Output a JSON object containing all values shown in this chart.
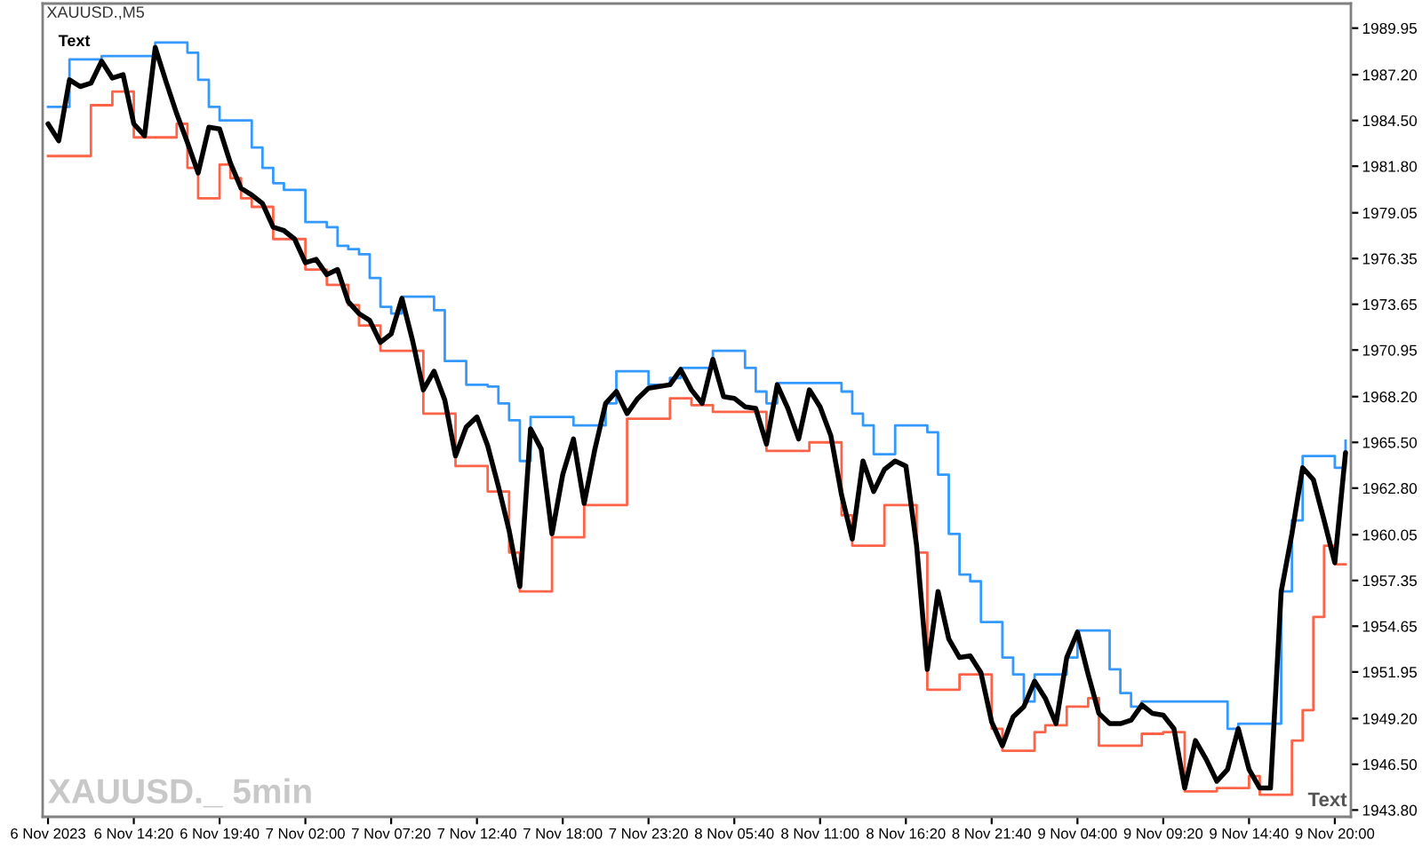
{
  "chart_data": {
    "type": "line",
    "title": "XAUUSD.,M5",
    "annotations": [
      "Text",
      "XAUUSD._ 5min",
      "Text"
    ],
    "categories": [
      "6 Nov 2023",
      null,
      null,
      null,
      null,
      null,
      null,
      null,
      "6 Nov 14:20",
      null,
      null,
      null,
      null,
      null,
      null,
      null,
      "6 Nov 19:40",
      null,
      null,
      null,
      null,
      null,
      null,
      null,
      "7 Nov 02:00",
      null,
      null,
      null,
      null,
      null,
      null,
      null,
      "7 Nov 07:20",
      null,
      null,
      null,
      null,
      null,
      null,
      null,
      "7 Nov 12:40",
      null,
      null,
      null,
      null,
      null,
      null,
      null,
      "7 Nov 18:00",
      null,
      null,
      null,
      null,
      null,
      null,
      null,
      "7 Nov 23:20",
      null,
      null,
      null,
      null,
      null,
      null,
      null,
      "8 Nov 05:40",
      null,
      null,
      null,
      null,
      null,
      null,
      null,
      "8 Nov 11:00",
      null,
      null,
      null,
      null,
      null,
      null,
      null,
      "8 Nov 16:20",
      null,
      null,
      null,
      null,
      null,
      null,
      null,
      "8 Nov 21:40",
      null,
      null,
      null,
      null,
      null,
      null,
      null,
      "9 Nov 04:00",
      null,
      null,
      null,
      null,
      null,
      null,
      null,
      "9 Nov 09:20",
      null,
      null,
      null,
      null,
      null,
      null,
      null,
      "9 Nov 14:40",
      null,
      null,
      null,
      null,
      null,
      null,
      null,
      "9 Nov 20:00",
      null
    ],
    "ylim": [
      1943.4,
      1991.4
    ],
    "yticks": [
      1989.95,
      {
        "value": 1987.2,
        "label": "1987.20"
      },
      {
        "value": 1984.5,
        "label": "1984.50"
      },
      {
        "value": 1981.8,
        "label": "1981.80"
      },
      1979.05,
      1976.35,
      1973.65,
      1970.95,
      {
        "value": 1968.2,
        "label": "1968.20"
      },
      {
        "value": 1965.5,
        "label": "1965.50"
      },
      {
        "value": 1962.8,
        "label": "1962.80"
      },
      1960.05,
      1957.35,
      1954.65,
      1951.95,
      {
        "value": 1949.2,
        "label": "1949.20"
      },
      {
        "value": 1946.5,
        "label": "1946.50"
      },
      {
        "value": 1943.8,
        "label": "1943.80"
      }
    ],
    "series": [
      {
        "type": "step",
        "color": "#3399ff",
        "values": [
          1985.3,
          1985.3,
          1988.1,
          1988.1,
          1988.1,
          1988.3,
          1988.3,
          1988.3,
          1988.3,
          1988.3,
          1989.1,
          1989.1,
          1989.1,
          1988.5,
          1986.9,
          1985.3,
          1984.5,
          1984.5,
          1984.5,
          1982.9,
          1981.7,
          1980.8,
          1980.4,
          1980.4,
          1978.5,
          1978.5,
          1978.2,
          1977.1,
          1976.9,
          1976.6,
          1975.2,
          1973.5,
          1973.1,
          1974.1,
          1974.1,
          1974.1,
          1973.3,
          1970.3,
          1970.3,
          1968.9,
          1968.9,
          1968.8,
          1967.8,
          1966.8,
          1964.4,
          1967.0,
          1967.0,
          1967.0,
          1967.0,
          1966.5,
          1966.5,
          1966.5,
          1967.8,
          1969.7,
          1969.7,
          1969.7,
          1968.9,
          1968.9,
          1969.3,
          1969.9,
          1969.9,
          1969.9,
          1970.9,
          1970.9,
          1970.9,
          1969.9,
          1968.5,
          1967.8,
          1969.0,
          1969.0,
          1969.0,
          1969.0,
          1969.0,
          1969.0,
          1968.5,
          1967.2,
          1966.5,
          1964.8,
          1964.8,
          1966.5,
          1966.5,
          1966.5,
          1966.1,
          1963.6,
          1960.1,
          1957.7,
          1957.3,
          1954.9,
          1954.9,
          1952.8,
          1951.8,
          1950.2,
          1951.8,
          1951.8,
          1951.8,
          1952.8,
          1954.4,
          1954.4,
          1954.4,
          1952.1,
          1950.7,
          1949.9,
          1950.2,
          1950.2,
          1950.2,
          1950.2,
          1950.2,
          1950.2,
          1950.2,
          1950.2,
          1948.6,
          1948.9,
          1948.9,
          1948.9,
          1948.9,
          1956.7,
          1960.9,
          1964.7,
          1964.7,
          1964.7,
          1964.0,
          1965.6
        ]
      },
      {
        "type": "step",
        "color": "#ff6347",
        "values": [
          1982.4,
          1982.4,
          1982.4,
          1982.4,
          1985.4,
          1985.4,
          1986.2,
          1986.2,
          1983.5,
          1983.5,
          1983.5,
          1983.5,
          1984.3,
          1981.7,
          1979.9,
          1979.9,
          1981.9,
          1981.1,
          1979.9,
          1979.4,
          1979.4,
          1977.5,
          1977.5,
          1977.5,
          1975.7,
          1975.7,
          1974.8,
          1974.8,
          1973.6,
          1972.4,
          1972.4,
          1970.9,
          1970.9,
          1970.9,
          1970.9,
          1967.2,
          1967.2,
          1967.2,
          1964.1,
          1964.1,
          1964.1,
          1962.6,
          1962.6,
          1959.0,
          1956.7,
          1956.7,
          1956.7,
          1959.9,
          1959.9,
          1959.9,
          1961.8,
          1961.8,
          1961.8,
          1961.8,
          1966.9,
          1966.9,
          1966.9,
          1966.9,
          1968.1,
          1968.1,
          1967.7,
          1967.7,
          1967.3,
          1967.3,
          1967.3,
          1967.3,
          1967.3,
          1965.0,
          1965.0,
          1965.0,
          1965.0,
          1965.5,
          1965.5,
          1965.5,
          1961.2,
          1959.4,
          1959.4,
          1959.4,
          1961.8,
          1961.8,
          1961.8,
          1959.0,
          1950.9,
          1950.9,
          1950.9,
          1951.8,
          1951.8,
          1951.8,
          1948.6,
          1947.3,
          1947.3,
          1947.3,
          1948.4,
          1948.8,
          1948.8,
          1949.9,
          1949.9,
          1950.4,
          1947.6,
          1947.6,
          1947.6,
          1947.6,
          1948.3,
          1948.3,
          1948.4,
          1948.4,
          1944.9,
          1944.9,
          1944.9,
          1945.1,
          1945.1,
          1945.1,
          1945.8,
          1944.7,
          1944.7,
          1944.7,
          1947.9,
          1949.7,
          1955.2,
          1959.4,
          1958.3,
          1958.3
        ]
      },
      {
        "color": "#000000",
        "values": [
          1984.3,
          1983.3,
          1986.9,
          1986.5,
          1986.7,
          1988.0,
          1987.0,
          1987.2,
          1984.3,
          1983.6,
          1988.8,
          1986.8,
          1984.9,
          1983.2,
          1981.4,
          1984.1,
          1984.0,
          1982.0,
          1980.5,
          1980.1,
          1979.6,
          1978.2,
          1978.0,
          1977.5,
          1976.1,
          1976.3,
          1975.4,
          1975.7,
          1973.8,
          1973.1,
          1972.7,
          1971.4,
          1971.9,
          1974.0,
          1971.5,
          1968.6,
          1969.7,
          1968.0,
          1964.7,
          1966.4,
          1967.0,
          1965.3,
          1962.9,
          1960.3,
          1957.0,
          1966.3,
          1965.1,
          1960.1,
          1963.6,
          1965.7,
          1961.9,
          1965.1,
          1967.8,
          1968.5,
          1967.2,
          1968.1,
          1968.7,
          1968.8,
          1968.9,
          1969.8,
          1968.6,
          1967.8,
          1970.4,
          1968.2,
          1968.1,
          1967.6,
          1967.5,
          1965.4,
          1968.9,
          1967.5,
          1965.7,
          1968.6,
          1967.6,
          1965.9,
          1962.4,
          1959.8,
          1964.4,
          1962.6,
          1963.9,
          1964.4,
          1964.1,
          1959.4,
          1952.1,
          1956.7,
          1953.9,
          1952.8,
          1952.9,
          1951.9,
          1949.0,
          1947.6,
          1949.3,
          1949.9,
          1951.4,
          1950.4,
          1948.9,
          1952.8,
          1954.3,
          1951.8,
          1949.5,
          1948.9,
          1948.9,
          1949.1,
          1950.0,
          1949.5,
          1949.4,
          1948.6,
          1945.1,
          1947.9,
          1946.8,
          1945.5,
          1946.2,
          1948.6,
          1946.2,
          1945.1,
          1945.1,
          1956.7,
          1960.1,
          1964.0,
          1963.3,
          1960.9,
          1958.4,
          1964.9
        ]
      }
    ]
  }
}
